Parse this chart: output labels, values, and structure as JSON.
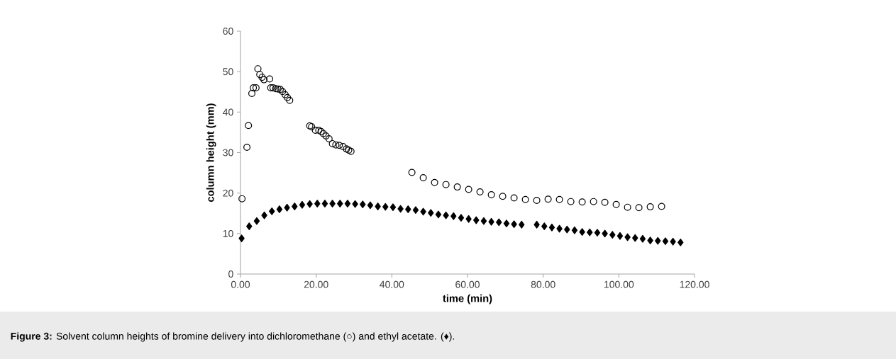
{
  "chart_data": {
    "type": "scatter",
    "xlabel": "time (min)",
    "ylabel": "column height (mm)",
    "xlim": [
      0,
      120
    ],
    "ylim": [
      0,
      60
    ],
    "xticks": [
      {
        "value": 0,
        "label": "0.00"
      },
      {
        "value": 20,
        "label": "20.00"
      },
      {
        "value": 40,
        "label": "40.00"
      },
      {
        "value": 60,
        "label": "60.00"
      },
      {
        "value": 80,
        "label": "80.00"
      },
      {
        "value": 100,
        "label": "100.00"
      },
      {
        "value": 120,
        "label": "120.00"
      }
    ],
    "yticks": [
      0,
      10,
      20,
      30,
      40,
      50,
      60
    ],
    "annotations": [
      "**Figure 3:** Solvent column heights of bromine delivery into dichloromethane (○) and ethyl acetate. (♦)."
    ],
    "series": [
      {
        "color": "#000000",
        "marker": "circle",
        "x": [
          0.4,
          1.7,
          2.1,
          3.0,
          3.4,
          4.1,
          4.6,
          5.1,
          5.7,
          6.2,
          7.7,
          8.0,
          8.6,
          9.3,
          9.9,
          10.5,
          11.1,
          11.8,
          12.4,
          13.0,
          18.3,
          18.8,
          19.8,
          20.7,
          21.3,
          21.9,
          22.6,
          23.4,
          24.3,
          25.2,
          26.1,
          27.1,
          28.0,
          28.6,
          29.2,
          45.3,
          48.3,
          51.3,
          54.3,
          57.3,
          60.3,
          63.3,
          66.3,
          69.3,
          72.3,
          75.3,
          78.3,
          81.3,
          84.3,
          87.3,
          90.3,
          93.3,
          96.3,
          99.3,
          102.3,
          105.3,
          108.3,
          111.3
        ],
        "values": [
          18.6,
          31.3,
          36.7,
          44.6,
          46.0,
          46.0,
          50.7,
          49.3,
          48.6,
          48.0,
          48.2,
          46.0,
          46.0,
          45.8,
          45.7,
          45.6,
          45.1,
          44.3,
          43.6,
          42.9,
          36.6,
          36.4,
          35.5,
          35.5,
          35.2,
          34.7,
          34.1,
          33.4,
          32.2,
          31.9,
          31.8,
          31.5,
          30.9,
          30.6,
          30.3,
          25.1,
          23.8,
          22.6,
          22.1,
          21.5,
          20.9,
          20.3,
          19.6,
          19.2,
          18.8,
          18.4,
          18.2,
          18.5,
          18.4,
          17.9,
          17.8,
          17.9,
          17.7,
          17.2,
          16.5,
          16.4,
          16.6,
          16.7
        ]
      },
      {
        "color": "#000000",
        "marker": "diamond",
        "x": [
          0.3,
          2.3,
          4.3,
          6.3,
          8.3,
          10.3,
          12.3,
          14.3,
          16.3,
          18.3,
          20.3,
          22.3,
          24.3,
          26.3,
          28.3,
          30.3,
          32.3,
          34.3,
          36.3,
          38.3,
          40.3,
          42.3,
          44.3,
          46.3,
          48.3,
          50.3,
          52.3,
          54.3,
          56.3,
          58.3,
          60.3,
          62.3,
          64.3,
          66.3,
          68.3,
          70.3,
          72.3,
          74.3,
          78.3,
          80.3,
          82.3,
          84.3,
          86.3,
          88.3,
          90.3,
          92.3,
          94.3,
          96.3,
          98.3,
          100.3,
          102.3,
          104.3,
          106.3,
          108.3,
          110.3,
          112.3,
          114.3,
          116.3
        ],
        "values": [
          8.8,
          11.8,
          13.1,
          14.5,
          15.5,
          16.0,
          16.4,
          16.7,
          17.1,
          17.3,
          17.4,
          17.4,
          17.4,
          17.4,
          17.4,
          17.3,
          17.2,
          17.0,
          16.7,
          16.6,
          16.5,
          16.1,
          16.0,
          15.8,
          15.4,
          15.1,
          14.7,
          14.5,
          14.3,
          13.9,
          13.6,
          13.3,
          13.1,
          12.9,
          12.8,
          12.5,
          12.3,
          12.2,
          12.2,
          11.8,
          11.5,
          11.2,
          11.0,
          10.8,
          10.4,
          10.3,
          10.2,
          10.0,
          9.7,
          9.4,
          9.1,
          8.9,
          8.7,
          8.3,
          8.2,
          8.1,
          8.0,
          7.8
        ]
      }
    ]
  }
}
